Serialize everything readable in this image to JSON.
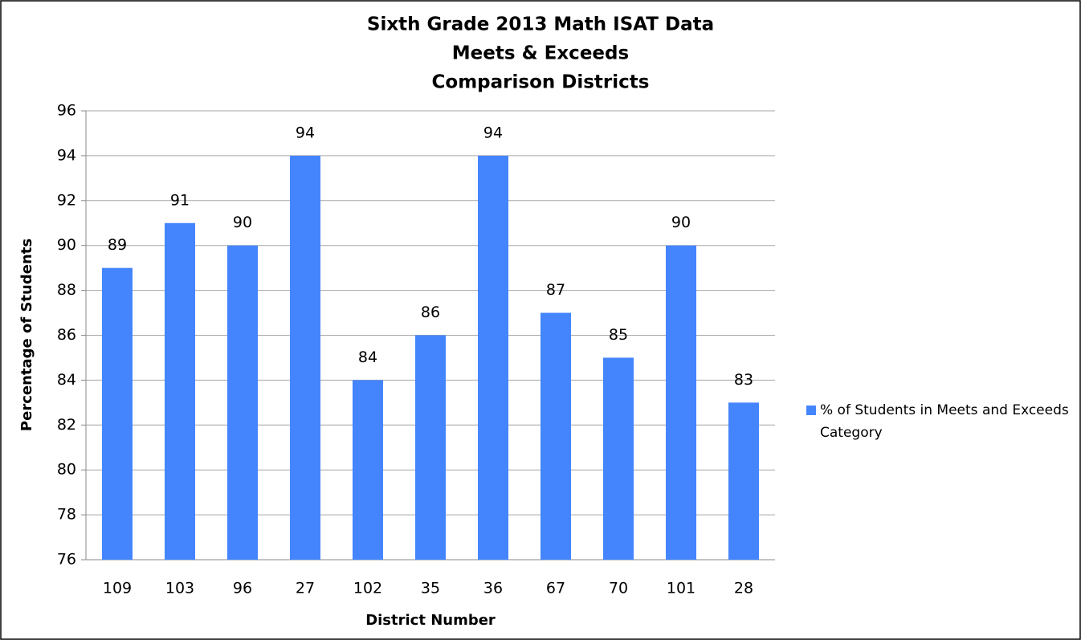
{
  "chart_data": {
    "type": "bar",
    "title": [
      "Sixth Grade 2013 Math ISAT Data",
      "Meets & Exceeds",
      "Comparison Districts"
    ],
    "x_label": "District Number",
    "y_label": "Percentage of Students",
    "categories": [
      "109",
      "103",
      "96",
      "27",
      "102",
      "35",
      "36",
      "67",
      "70",
      "101",
      "28"
    ],
    "series": [
      {
        "name": "% of Students in Meets and Exceeds Category",
        "color": "#4485fd",
        "values": [
          89,
          91,
          90,
          94,
          84,
          86,
          94,
          87,
          85,
          90,
          83
        ]
      }
    ],
    "ylim": [
      76,
      96
    ],
    "yticks": [
      76,
      78,
      80,
      82,
      84,
      86,
      88,
      90,
      92,
      94,
      96
    ],
    "grid": true,
    "legend": "right",
    "data_labels": true
  }
}
